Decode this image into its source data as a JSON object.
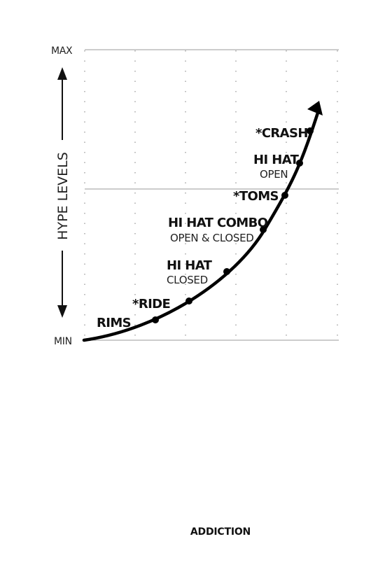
{
  "diagram": {
    "y_axis": {
      "label": "HYPE LEVELS",
      "max_label": "MAX",
      "min_label": "MIN"
    },
    "milestones": [
      {
        "main": "RIMS",
        "sub": ""
      },
      {
        "main": "*RIDE",
        "sub": ""
      },
      {
        "main": "HI HAT",
        "sub": "CLOSED"
      },
      {
        "main": "HI HAT COMBO",
        "sub": "OPEN & CLOSED"
      },
      {
        "main": "*TOMS",
        "sub": ""
      },
      {
        "main": "HI HAT",
        "sub": "OPEN"
      },
      {
        "main": "*CRASH",
        "sub": ""
      }
    ],
    "caption": "ADDICTION"
  }
}
